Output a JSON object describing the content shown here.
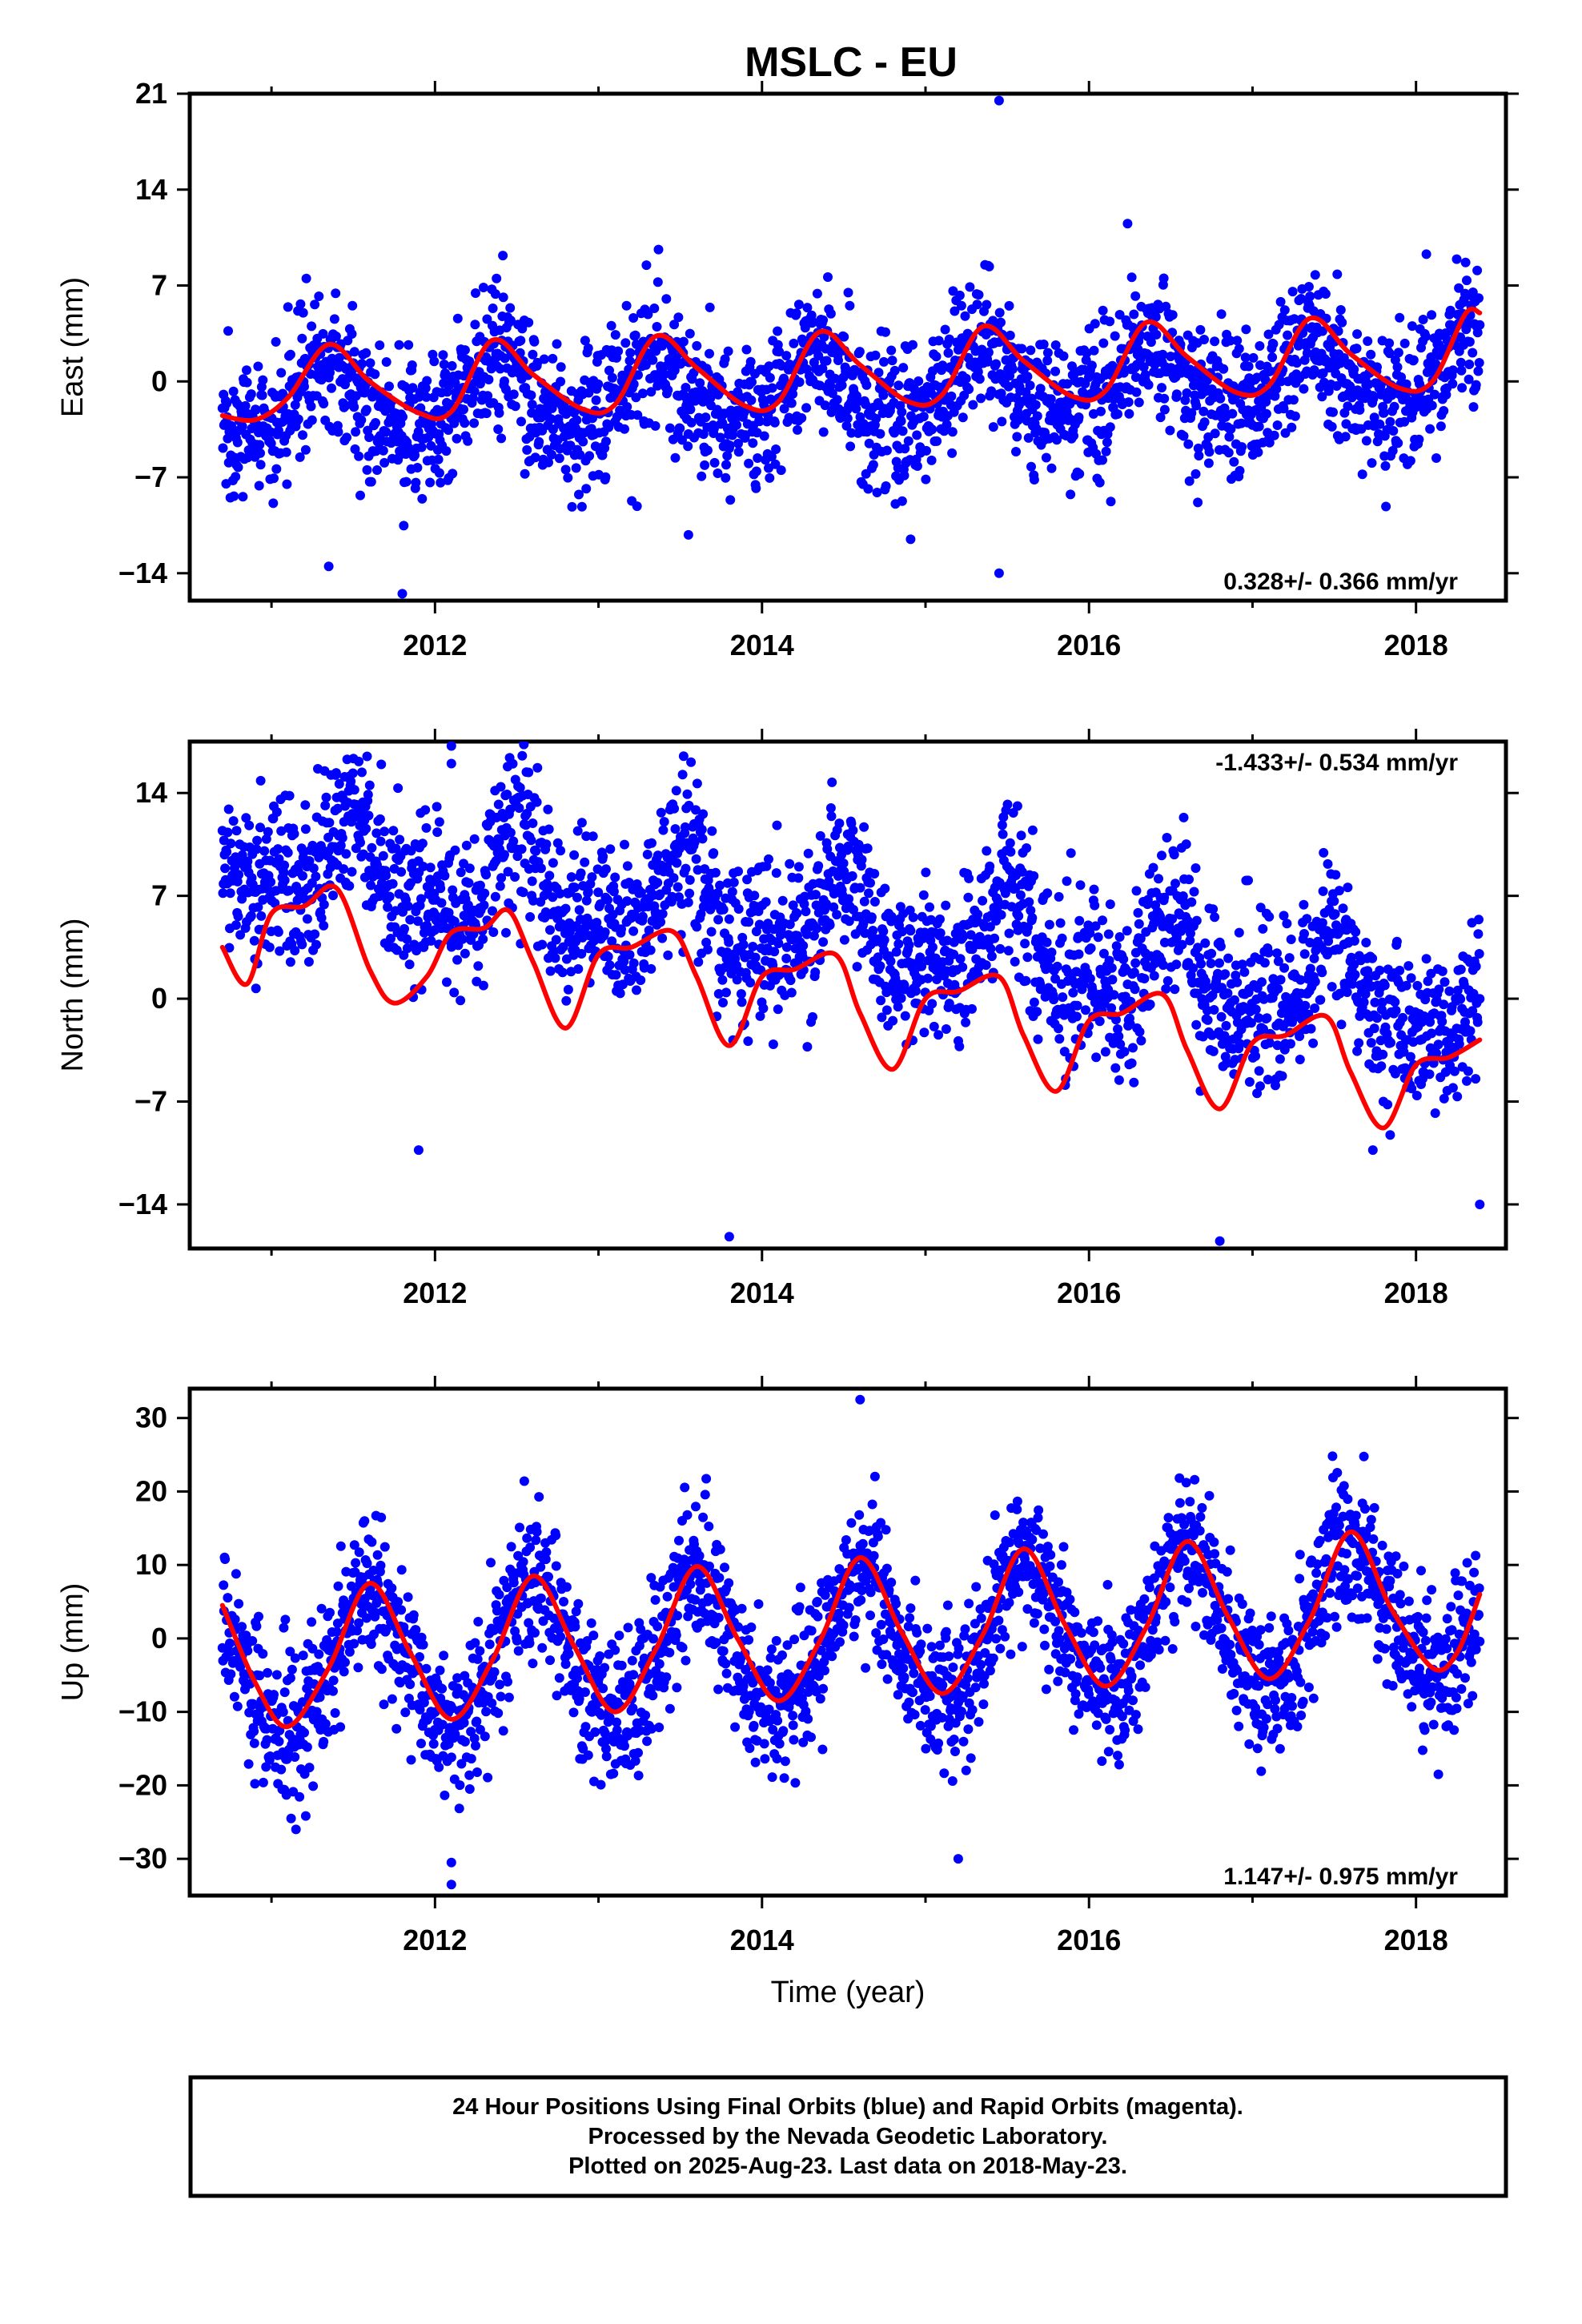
{
  "title": "MSLC - EU",
  "footer": {
    "lines": [
      "24 Hour Positions Using Final Orbits (blue) and Rapid Orbits (magenta).",
      "Processed by the Nevada Geodetic Laboratory.",
      "Plotted on 2025-Aug-23. Last data on 2018-May-23."
    ]
  },
  "colors": {
    "points": "#0000ff",
    "model": "#ff0000",
    "axes": "#000000"
  },
  "chart_data": [
    {
      "type": "scatter",
      "ylabel": "East (mm)",
      "xlabel": "",
      "xlim": [
        2010.5,
        2018.55
      ],
      "ylim": [
        -16,
        21
      ],
      "xticks": [
        2012,
        2014,
        2016,
        2018
      ],
      "yticks": [
        -14,
        -7,
        0,
        7,
        14,
        21
      ],
      "rate": "0.328+/- 0.366 mm/yr",
      "rate_position": "bottom-right",
      "points": {
        "x_range": [
          2010.7,
          2018.39
        ],
        "trend": 0.328,
        "offset": -0.6,
        "annual_amplitude": 2.4,
        "annual_peak": 0.35,
        "semiannual_amplitude": 0.5,
        "scatter": 2.6,
        "outliers": [
          [
            2015.45,
            20.5
          ],
          [
            2011.8,
            -15.5
          ],
          [
            2011.35,
            -13.5
          ],
          [
            2015.45,
            -14.0
          ],
          [
            2013.55,
            -11.2
          ]
        ]
      },
      "model": {
        "x": [
          2010.7,
          2010.9,
          2011.1,
          2011.35,
          2011.6,
          2011.9,
          2012.1,
          2012.35,
          2012.6,
          2012.9,
          2013.1,
          2013.35,
          2013.6,
          2013.9,
          2014.1,
          2014.35,
          2014.6,
          2014.9,
          2015.1,
          2015.35,
          2015.6,
          2015.9,
          2016.1,
          2016.35,
          2016.6,
          2016.9,
          2017.1,
          2017.35,
          2017.6,
          2017.9,
          2018.1,
          2018.3,
          2018.39
        ],
        "y": [
          -2.5,
          -2.8,
          -1.2,
          2.7,
          0.0,
          -2.3,
          -2.2,
          3.0,
          0.5,
          -2.0,
          -1.7,
          3.3,
          1.0,
          -1.8,
          -1.5,
          3.6,
          1.2,
          -1.5,
          -1.0,
          4.0,
          1.5,
          -1.1,
          -0.7,
          4.3,
          1.8,
          -0.8,
          -0.3,
          4.6,
          2.0,
          -0.5,
          0.0,
          4.9,
          5.0
        ]
      }
    },
    {
      "type": "scatter",
      "ylabel": "North (mm)",
      "xlabel": "",
      "xlim": [
        2010.5,
        2018.55
      ],
      "ylim": [
        -17,
        17.5
      ],
      "xticks": [
        2012,
        2014,
        2016,
        2018
      ],
      "yticks": [
        -14,
        -7,
        0,
        7,
        14
      ],
      "rate": "-1.433+/- 0.534 mm/yr",
      "rate_position": "top-right",
      "points": {
        "x_range": [
          2010.7,
          2018.39
        ],
        "trend": -1.433,
        "offset": 4.8,
        "annual_amplitude": 2.8,
        "annual_peak": 0.5,
        "semiannual_amplitude": 1.5,
        "scatter": 2.7,
        "outliers": [
          [
            2012.1,
            17.2
          ],
          [
            2012.1,
            16.0
          ],
          [
            2013.8,
            -16.2
          ],
          [
            2016.8,
            -16.5
          ],
          [
            2011.9,
            -10.3
          ],
          [
            2018.39,
            -14.0
          ]
        ]
      },
      "model": {
        "x": [
          2010.7,
          2010.85,
          2011.0,
          2011.2,
          2011.4,
          2011.6,
          2011.75,
          2011.95,
          2012.1,
          2012.3,
          2012.45,
          2012.6,
          2012.8,
          2013.0,
          2013.2,
          2013.45,
          2013.6,
          2013.8,
          2014.0,
          2014.2,
          2014.45,
          2014.6,
          2014.8,
          2015.0,
          2015.2,
          2015.45,
          2015.6,
          2015.8,
          2016.0,
          2016.2,
          2016.45,
          2016.6,
          2016.8,
          2017.0,
          2017.2,
          2017.45,
          2017.6,
          2017.8,
          2018.0,
          2018.2,
          2018.39
        ],
        "y": [
          3.5,
          1.0,
          5.8,
          6.3,
          7.5,
          2.0,
          -0.3,
          1.5,
          4.5,
          4.8,
          6.0,
          2.5,
          -2.0,
          3.0,
          3.5,
          4.6,
          1.5,
          -3.2,
          1.5,
          2.0,
          3.0,
          -1.0,
          -4.8,
          0.0,
          0.5,
          1.5,
          -2.5,
          -6.3,
          -1.5,
          -1.0,
          0.3,
          -3.5,
          -7.5,
          -3.0,
          -2.5,
          -1.2,
          -5.0,
          -8.8,
          -4.5,
          -4.0,
          -2.8
        ]
      }
    },
    {
      "type": "scatter",
      "ylabel": "Up (mm)",
      "xlabel": "Time (year)",
      "xlim": [
        2010.5,
        2018.55
      ],
      "ylim": [
        -35,
        34
      ],
      "xticks": [
        2012,
        2014,
        2016,
        2018
      ],
      "yticks": [
        -30,
        -20,
        -10,
        0,
        10,
        20,
        30
      ],
      "rate": "1.147+/- 0.975 mm/yr",
      "rate_position": "bottom-right",
      "points": {
        "x_range": [
          2010.7,
          2018.39
        ],
        "trend": 1.147,
        "offset": -0.3,
        "annual_amplitude": 9.5,
        "annual_peak": 0.6,
        "semiannual_amplitude": 1.0,
        "scatter": 5.0,
        "outliers": [
          [
            2014.6,
            32.5
          ],
          [
            2012.1,
            -33.5
          ],
          [
            2012.1,
            -30.5
          ],
          [
            2015.2,
            -30.0
          ],
          [
            2011.15,
            -26.0
          ]
        ]
      },
      "model": {
        "x": [
          2010.7,
          2010.9,
          2011.1,
          2011.35,
          2011.6,
          2011.85,
          2012.1,
          2012.35,
          2012.6,
          2012.85,
          2013.1,
          2013.35,
          2013.6,
          2013.85,
          2014.1,
          2014.35,
          2014.6,
          2014.85,
          2015.1,
          2015.35,
          2015.6,
          2015.85,
          2016.1,
          2016.35,
          2016.6,
          2016.85,
          2017.1,
          2017.35,
          2017.6,
          2017.85,
          2018.1,
          2018.25,
          2018.39
        ],
        "y": [
          4.5,
          -6.0,
          -12.0,
          -4.0,
          7.5,
          -2.0,
          -11.0,
          -3.0,
          8.5,
          -1.0,
          -10.0,
          -1.5,
          9.8,
          0.0,
          -8.5,
          -0.5,
          11.0,
          1.0,
          -7.5,
          0.5,
          12.2,
          2.0,
          -6.5,
          1.5,
          13.2,
          3.0,
          -5.5,
          2.5,
          14.5,
          4.0,
          -4.0,
          -2.0,
          6.0
        ]
      }
    }
  ]
}
